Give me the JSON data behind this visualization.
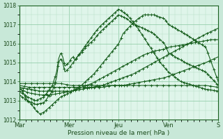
{
  "fig_bg": "#c8e8d8",
  "plot_bg": "#dff5ea",
  "grid_major_color": "#88c8a0",
  "grid_minor_color": "#b0dcc0",
  "line_color": "#1a6020",
  "ylim": [
    1012,
    1018
  ],
  "xlim": [
    0,
    192
  ],
  "yticks": [
    1012,
    1013,
    1014,
    1015,
    1016,
    1017,
    1018
  ],
  "xtick_pos": [
    0,
    48,
    96,
    144,
    192
  ],
  "xtick_labels": [
    "Mar",
    "Mer",
    "Jeu",
    "Ven",
    "S"
  ],
  "xlabel": "Pression niveau de la mer( hPa )",
  "figsize": [
    3.2,
    2.0
  ],
  "dpi": 100,
  "series": {
    "s1": {
      "xp": [
        0,
        4,
        8,
        12,
        16,
        20,
        24,
        28,
        32,
        36,
        40,
        44,
        48,
        60,
        72,
        84,
        96,
        100,
        110,
        120,
        130,
        140,
        144,
        160,
        180,
        192
      ],
      "yp": [
        1013.8,
        1013.4,
        1013.0,
        1012.8,
        1012.5,
        1012.3,
        1012.4,
        1012.6,
        1012.8,
        1013.0,
        1013.2,
        1013.3,
        1013.4,
        1013.8,
        1014.4,
        1015.2,
        1016.0,
        1016.5,
        1017.1,
        1017.5,
        1017.5,
        1017.3,
        1017.0,
        1016.5,
        1015.8,
        1014.0
      ],
      "marker_every": 6
    },
    "s2": {
      "xp": [
        0,
        8,
        16,
        24,
        32,
        36,
        38,
        40,
        42,
        44,
        48,
        50,
        52,
        54,
        56,
        60,
        64,
        68,
        72,
        78,
        84,
        90,
        96,
        104,
        110,
        120,
        130,
        140,
        144,
        160,
        180,
        192
      ],
      "yp": [
        1013.5,
        1013.2,
        1013.0,
        1013.2,
        1013.8,
        1014.5,
        1015.2,
        1015.5,
        1015.3,
        1014.8,
        1015.0,
        1015.2,
        1015.3,
        1015.1,
        1015.3,
        1015.5,
        1015.8,
        1016.0,
        1016.2,
        1016.6,
        1016.9,
        1017.2,
        1017.5,
        1017.3,
        1017.0,
        1016.8,
        1016.5,
        1016.0,
        1015.5,
        1015.0,
        1014.5,
        1013.8
      ],
      "marker_every": 6
    },
    "s3": {
      "xp": [
        0,
        8,
        16,
        24,
        32,
        36,
        38,
        40,
        42,
        44,
        48,
        52,
        56,
        60,
        64,
        68,
        72,
        78,
        84,
        90,
        96,
        104,
        112,
        124,
        136,
        144,
        156,
        168,
        180,
        192
      ],
      "yp": [
        1013.3,
        1013.0,
        1012.8,
        1012.9,
        1013.5,
        1014.2,
        1015.0,
        1015.2,
        1015.0,
        1014.5,
        1014.7,
        1015.0,
        1015.3,
        1015.6,
        1015.9,
        1016.2,
        1016.5,
        1016.9,
        1017.2,
        1017.5,
        1017.8,
        1017.5,
        1017.0,
        1016.0,
        1015.0,
        1014.5,
        1014.0,
        1013.8,
        1013.6,
        1013.5
      ],
      "marker_every": 6
    },
    "s4": {
      "xp": [
        0,
        10,
        20,
        30,
        40,
        50,
        60,
        70,
        80,
        90,
        100,
        110,
        120,
        130,
        140,
        144,
        155,
        165,
        175,
        185,
        192
      ],
      "yp": [
        1013.6,
        1013.4,
        1013.3,
        1013.3,
        1013.4,
        1013.5,
        1013.7,
        1013.9,
        1014.2,
        1014.5,
        1014.8,
        1015.1,
        1015.4,
        1015.6,
        1015.7,
        1015.8,
        1015.9,
        1016.0,
        1016.1,
        1016.2,
        1016.2
      ],
      "marker_every": 8
    },
    "s5": {
      "xp": [
        0,
        10,
        20,
        30,
        40,
        50,
        60,
        70,
        80,
        90,
        100,
        110,
        120,
        130,
        140,
        150,
        160,
        170,
        180,
        192
      ],
      "yp": [
        1013.7,
        1013.6,
        1013.5,
        1013.5,
        1013.5,
        1013.5,
        1013.6,
        1013.7,
        1013.8,
        1014.0,
        1014.2,
        1014.4,
        1014.7,
        1015.0,
        1015.3,
        1015.6,
        1015.9,
        1016.2,
        1016.5,
        1016.8
      ],
      "marker_every": 8
    },
    "s6": {
      "xp": [
        0,
        10,
        20,
        30,
        40,
        50,
        60,
        70,
        80,
        90,
        100,
        110,
        120,
        130,
        140,
        150,
        160,
        170,
        180,
        192
      ],
      "yp": [
        1013.8,
        1013.7,
        1013.7,
        1013.7,
        1013.7,
        1013.7,
        1013.7,
        1013.7,
        1013.7,
        1013.8,
        1013.8,
        1013.9,
        1014.0,
        1014.1,
        1014.2,
        1014.4,
        1014.6,
        1014.8,
        1015.0,
        1015.3
      ],
      "marker_every": 10
    },
    "s7": {
      "xp": [
        0,
        10,
        20,
        30,
        40,
        50,
        60,
        70,
        80,
        90,
        100,
        110,
        120,
        130,
        140,
        150,
        160,
        170,
        180,
        192
      ],
      "yp": [
        1013.9,
        1013.9,
        1013.9,
        1013.9,
        1013.9,
        1013.8,
        1013.8,
        1013.8,
        1013.8,
        1013.8,
        1013.8,
        1013.8,
        1013.8,
        1013.8,
        1013.8,
        1013.8,
        1013.8,
        1013.8,
        1013.8,
        1013.7
      ],
      "marker_every": 12
    }
  }
}
